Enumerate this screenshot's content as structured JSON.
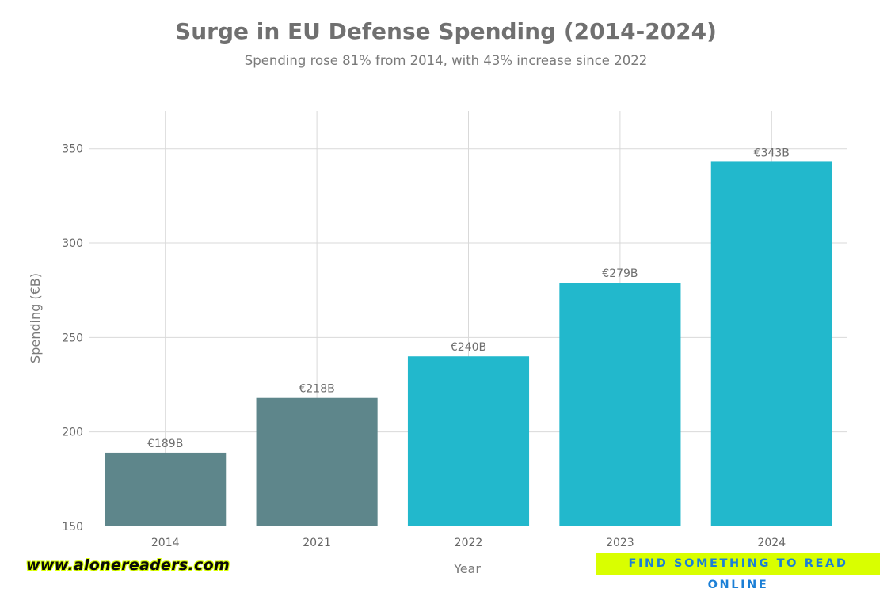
{
  "chart_data": {
    "type": "bar",
    "title": "Surge in EU Defense Spending (2014-2024)",
    "subtitle": "Spending rose 81% from 2014, with 43% increase since 2022",
    "xlabel": "Year",
    "ylabel": "Spending (€B)",
    "categories": [
      "2014",
      "2021",
      "2022",
      "2023",
      "2024"
    ],
    "values": [
      189,
      218,
      240,
      279,
      343
    ],
    "data_labels": [
      "€189B",
      "€218B",
      "€240B",
      "€279B",
      "€343B"
    ],
    "bar_colors": [
      "#5e868b",
      "#5e868b",
      "#22b8cc",
      "#22b8cc",
      "#22b8cc"
    ],
    "ylim": [
      150,
      370
    ],
    "yticks": [
      150,
      200,
      250,
      300,
      350
    ],
    "grid": true,
    "legend": "none"
  },
  "watermarks": {
    "site": "www.alonereaders.com",
    "tagline": "FIND SOMETHING TO READ ONLINE"
  },
  "colors": {
    "watermark_bg": "#d9ff00",
    "tagline_text": "#1b7fd6"
  }
}
